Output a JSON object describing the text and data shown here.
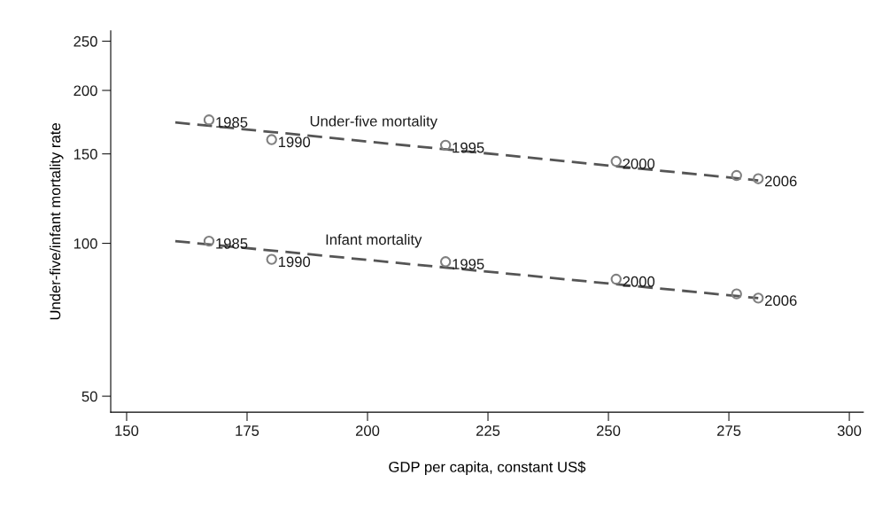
{
  "chart_data": {
    "type": "scatter",
    "xlabel": "GDP per capita, constant US$",
    "ylabel": "Under-five/infant mortality rate",
    "log": "y",
    "xlim": [
      146.7,
      302.9
    ],
    "ylim": [
      46.5,
      262
    ],
    "xticks": [
      150,
      175,
      200,
      225,
      250,
      275,
      300
    ],
    "yticks": [
      50,
      100,
      150,
      200,
      250
    ],
    "grid": false,
    "series": [
      {
        "color": "#808080",
        "marker": "circle",
        "x": [
          167.1,
          180.1,
          216.2,
          251.6,
          276.6,
          281.1
        ],
        "values": [
          175,
          160,
          156,
          145,
          136,
          134
        ]
      },
      {
        "color": "#808080",
        "marker": "circle",
        "x": [
          167.1,
          180.1,
          216.2,
          251.6,
          276.6,
          281.1
        ],
        "values": [
          101,
          93,
          92,
          85,
          79.5,
          78
        ]
      },
      {
        "type": "line",
        "name": "Under-five mortality",
        "color": "#555555",
        "line_style": "dashed",
        "x": [
          160.1,
          281.1
        ],
        "values": [
          173,
          133
        ]
      },
      {
        "type": "line",
        "name": "Infant mortality",
        "color": "#555555",
        "line_style": "dashed",
        "x": [
          160.1,
          281.1
        ],
        "values": [
          101,
          78
        ]
      }
    ],
    "annotations": [
      {
        "text": "1985",
        "x": 167.1,
        "y": 175
      },
      {
        "text": "1990",
        "x": 180.1,
        "y": 160
      },
      {
        "text": "1995",
        "x": 216.2,
        "y": 156
      },
      {
        "text": "2000",
        "x": 251.6,
        "y": 145
      },
      {
        "text": "2006",
        "x": 281.1,
        "y": 134
      },
      {
        "text": "1985",
        "x": 167.1,
        "y": 101
      },
      {
        "text": "1990",
        "x": 180.1,
        "y": 93
      },
      {
        "text": "1995",
        "x": 216.2,
        "y": 92
      },
      {
        "text": "2000",
        "x": 251.6,
        "y": 85
      },
      {
        "text": "2006",
        "x": 281.1,
        "y": 78
      }
    ]
  }
}
